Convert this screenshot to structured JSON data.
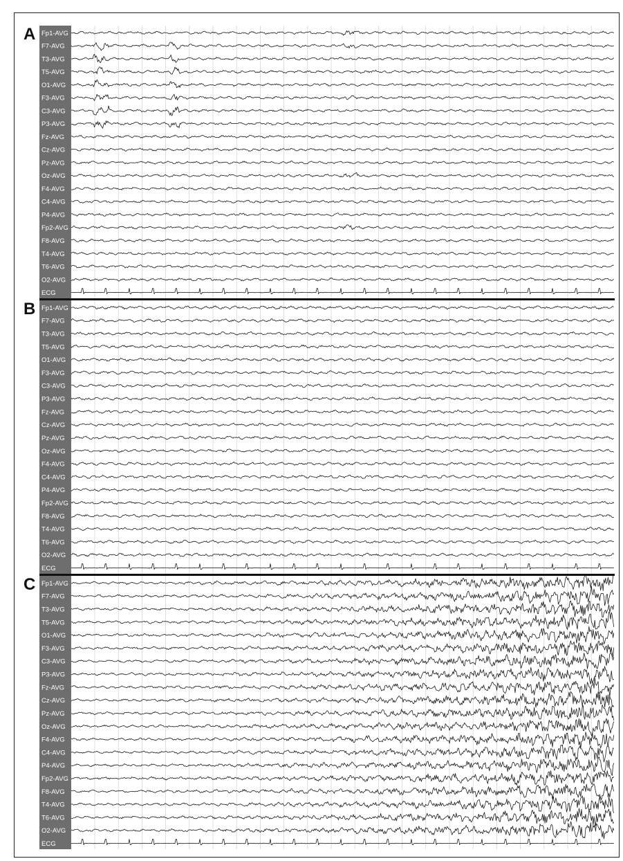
{
  "chart_data": [
    {
      "type": "line",
      "panel": "A",
      "channels": [
        "Fp1-AVG",
        "F7-AVG",
        "T3-AVG",
        "T5-AVG",
        "O1-AVG",
        "F3-AVG",
        "C3-AVG",
        "P3-AVG",
        "Fz-AVG",
        "Cz-AVG",
        "Pz-AVG",
        "Oz-AVG",
        "F4-AVG",
        "C4-AVG",
        "P4-AVG",
        "Fp2-AVG",
        "F8-AVG",
        "T4-AVG",
        "T6-AVG",
        "O2-AVG",
        "ECG"
      ],
      "grid": true
    },
    {
      "type": "line",
      "panel": "B",
      "channels": [
        "Fp1-AVG",
        "F7-AVG",
        "T3-AVG",
        "T5-AVG",
        "O1-AVG",
        "F3-AVG",
        "C3-AVG",
        "P3-AVG",
        "Fz-AVG",
        "Cz-AVG",
        "Pz-AVG",
        "Oz-AVG",
        "F4-AVG",
        "C4-AVG",
        "P4-AVG",
        "Fp2-AVG",
        "F8-AVG",
        "T4-AVG",
        "T6-AVG",
        "O2-AVG",
        "ECG"
      ],
      "grid": true
    },
    {
      "type": "line",
      "panel": "C",
      "channels": [
        "Fp1-AVG",
        "F7-AVG",
        "T3-AVG",
        "T5-AVG",
        "O1-AVG",
        "F3-AVG",
        "C3-AVG",
        "P3-AVG",
        "Fz-AVG",
        "Cz-AVG",
        "Pz-AVG",
        "Oz-AVG",
        "F4-AVG",
        "C4-AVG",
        "P4-AVG",
        "Fp2-AVG",
        "F8-AVG",
        "T4-AVG",
        "T6-AVG",
        "O2-AVG",
        "ECG"
      ],
      "grid": true
    }
  ],
  "colors": {
    "label_background": "#6e6e6e",
    "label_text": "#ffffff",
    "trace": "#1a1a1a",
    "grid": "#cfcfcf"
  }
}
